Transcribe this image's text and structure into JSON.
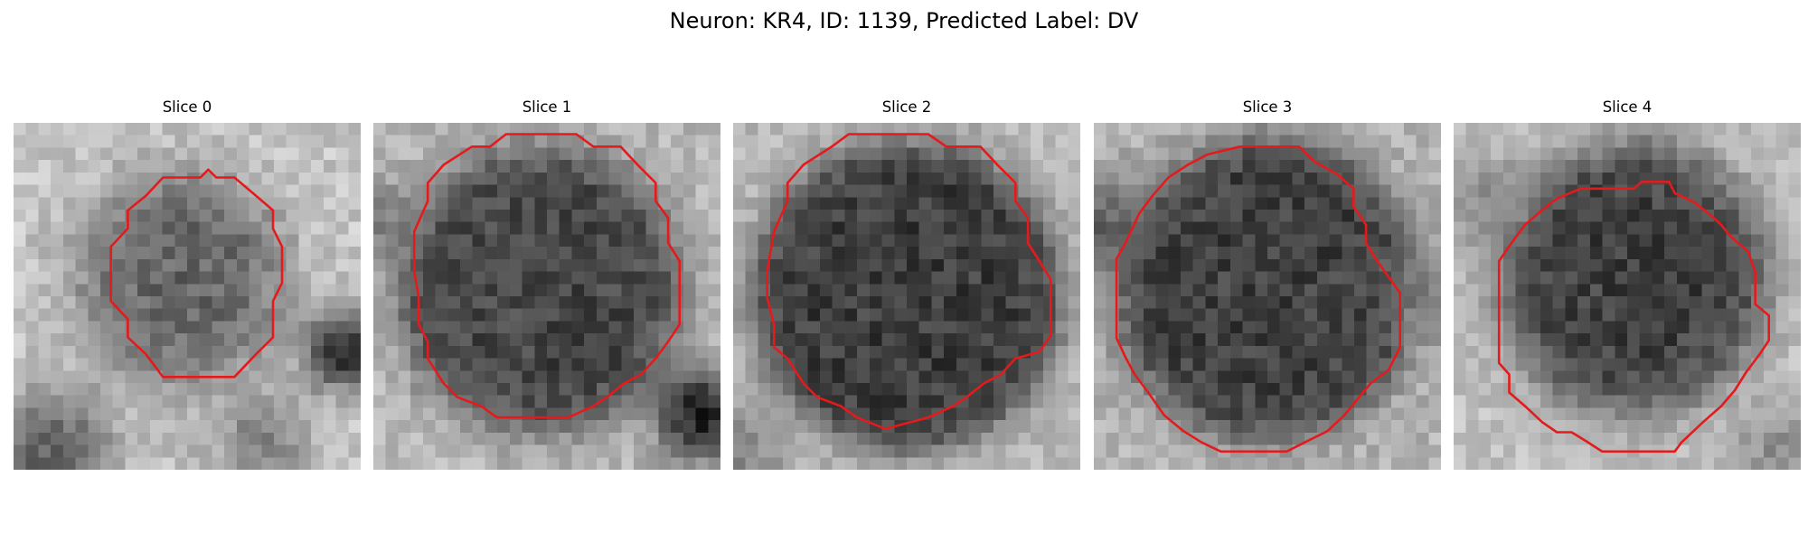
{
  "figure": {
    "title": "Neuron: KR4, ID: 1139, Predicted Label: DV"
  },
  "colors": {
    "contour": "#e41a1c",
    "background": "#ffffff"
  },
  "panels": [
    {
      "title": "Slice 0"
    },
    {
      "title": "Slice 1"
    },
    {
      "title": "Slice 2"
    },
    {
      "title": "Slice 3"
    },
    {
      "title": "Slice 4"
    }
  ]
}
